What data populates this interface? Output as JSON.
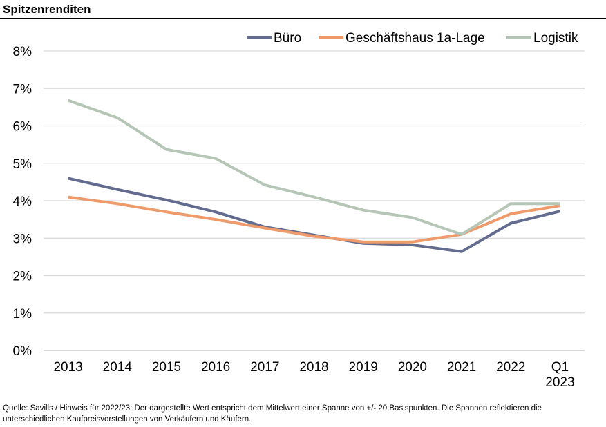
{
  "header": {
    "title": "Spitzenrenditen"
  },
  "footer": {
    "source": "Quelle: Savills / Hinweis für 2022/23: Der dargestellte Wert entspricht dem Mittelwert einer Spanne von +/- 20 Basispunkten. Die Spannen reflektieren die unterschiedlichen Kaufpreisvorstellungen von Verkäufern und Käufern."
  },
  "chart_data": {
    "type": "line",
    "title": "Spitzenrenditen",
    "categories": [
      "2013",
      "2014",
      "2015",
      "2016",
      "2017",
      "2018",
      "2019",
      "2020",
      "2021",
      "2022",
      "Q1\n2023"
    ],
    "ylim": [
      0,
      8
    ],
    "y_ticks": [
      "0%",
      "1%",
      "2%",
      "3%",
      "4%",
      "5%",
      "6%",
      "7%",
      "8%"
    ],
    "grid": true,
    "legend_position": "top-right",
    "series": [
      {
        "name": "Büro",
        "color": "#636b8f",
        "values": [
          4.6,
          4.3,
          4.02,
          3.7,
          3.3,
          3.08,
          2.86,
          2.82,
          2.64,
          3.4,
          3.72
        ]
      },
      {
        "name": "Geschäftshaus 1a-Lage",
        "color": "#ee9a6a",
        "values": [
          4.1,
          3.92,
          3.7,
          3.5,
          3.27,
          3.05,
          2.9,
          2.9,
          3.1,
          3.65,
          3.87
        ]
      },
      {
        "name": "Logistik",
        "color": "#b6c6b6",
        "values": [
          6.68,
          6.22,
          5.37,
          5.13,
          4.42,
          4.1,
          3.75,
          3.55,
          3.1,
          3.92,
          3.92
        ]
      }
    ]
  }
}
